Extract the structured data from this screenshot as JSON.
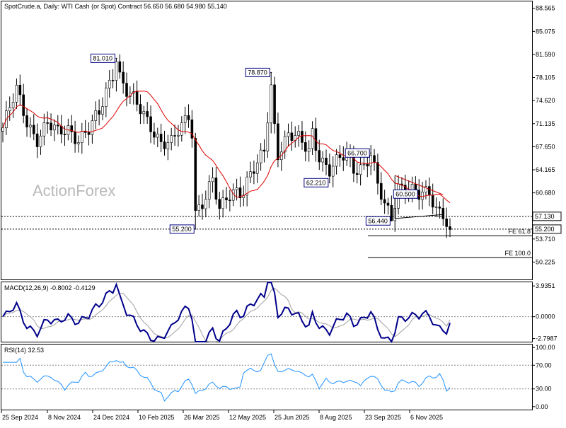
{
  "header": {
    "symbol": "SpotCrude.a, Daily:",
    "description": "WTI Cash (or Spot) Contract",
    "ohlc": "56.650 56.680 54.980 55.140"
  },
  "watermark": "ActionForex",
  "colors": {
    "candle": "#000000",
    "ma": "#e00000",
    "macd_line": "#00008b",
    "macd_signal": "#a0a0a0",
    "rsi": "#1e90ff",
    "trendline": "#000000",
    "upper_trend": "#cc0000"
  },
  "chart_data": [
    {
      "type": "candlestick",
      "panel": "price",
      "ylim": [
        47.6,
        89.6
      ],
      "y_ticks": [
        "88.565",
        "85.075",
        "81.590",
        "78.105",
        "74.620",
        "71.135",
        "67.650",
        "64.165",
        "60.680",
        "53.710",
        "50.225"
      ],
      "x_ticks": [
        "25 Sep 2024",
        "8 Nov 2024",
        "24 Dec 2024",
        "10 Feb 2025",
        "26 Mar 2025",
        "12 May 2025",
        "25 Jun 2025",
        "8 Aug 2025",
        "23 Sep 2025",
        "6 Nov 2025"
      ],
      "close_key_points": [
        [
          0,
          70.5
        ],
        [
          4,
          76.0
        ],
        [
          7,
          71.5
        ],
        [
          10,
          69.0
        ],
        [
          13,
          71.0
        ],
        [
          16,
          69.5
        ],
        [
          19,
          70.5
        ],
        [
          22,
          69.0
        ],
        [
          25,
          70.0
        ],
        [
          28,
          72.5
        ],
        [
          30,
          76.0
        ],
        [
          32,
          79.0
        ],
        [
          33,
          80.5
        ],
        [
          34,
          78.5
        ],
        [
          36,
          76.0
        ],
        [
          38,
          74.5
        ],
        [
          40,
          73.0
        ],
        [
          43,
          71.0
        ],
        [
          46,
          68.5
        ],
        [
          49,
          68.0
        ],
        [
          52,
          70.5
        ],
        [
          54,
          72.5
        ],
        [
          55,
          70.0
        ],
        [
          56,
          58.0
        ],
        [
          57,
          59.0
        ],
        [
          59,
          60.0
        ],
        [
          61,
          62.5
        ],
        [
          63,
          57.5
        ],
        [
          65,
          60.0
        ],
        [
          68,
          61.5
        ],
        [
          70,
          61.0
        ],
        [
          72,
          63.5
        ],
        [
          74,
          64.5
        ],
        [
          76,
          67.0
        ],
        [
          77,
          72.0
        ],
        [
          78,
          77.0
        ],
        [
          79,
          71.0
        ],
        [
          80,
          67.0
        ],
        [
          83,
          69.5
        ],
        [
          86,
          68.5
        ],
        [
          89,
          67.0
        ],
        [
          90,
          70.0
        ],
        [
          92,
          66.5
        ],
        [
          95,
          64.0
        ],
        [
          98,
          65.5
        ],
        [
          100,
          66.5
        ],
        [
          102,
          64.5
        ],
        [
          105,
          65.0
        ],
        [
          107,
          66.5
        ],
        [
          109,
          61.5
        ],
        [
          111,
          58.5
        ],
        [
          113,
          57.0
        ],
        [
          115,
          62.0
        ],
        [
          118,
          61.5
        ],
        [
          121,
          60.0
        ],
        [
          124,
          60.5
        ],
        [
          126,
          58.5
        ],
        [
          128,
          58.0
        ],
        [
          129,
          56.5
        ],
        [
          130,
          55.14
        ]
      ],
      "labels": [
        {
          "text": "81.010",
          "bar": 33,
          "price": 81.01,
          "side": "left"
        },
        {
          "text": "55.200",
          "bar": 56,
          "price": 55.2,
          "side": "left"
        },
        {
          "text": "78.870",
          "bar": 78,
          "price": 78.87,
          "side": "left"
        },
        {
          "text": "66.700",
          "bar": 107,
          "price": 66.7,
          "side": "left"
        },
        {
          "text": "62.210",
          "bar": 95,
          "price": 62.21,
          "side": "left"
        },
        {
          "text": "56.440",
          "bar": 113,
          "price": 56.44,
          "side": "left"
        },
        {
          "text": "60.500",
          "bar": 121,
          "price": 60.5,
          "side": "left"
        }
      ],
      "levels": [
        {
          "price": 57.13,
          "label": "57.130",
          "style": "dotted"
        },
        {
          "price": 55.2,
          "label": "55.200",
          "style": "dotted",
          "highlight": true
        }
      ],
      "projections": [
        {
          "price": 54.2,
          "label": "FE 61.8"
        },
        {
          "price": 50.9,
          "label": "FE 100.0"
        }
      ],
      "moving_average": "red"
    },
    {
      "type": "line",
      "panel": "macd",
      "title": "MACD(12,26,9) -0.8002 -0.4129",
      "ylim": [
        -3.2,
        4.4
      ],
      "y_ticks": [
        "3.9351",
        "0.0000",
        "-2.7987"
      ]
    },
    {
      "type": "line",
      "panel": "rsi",
      "title": "RSI(14) 32.53",
      "ylim": [
        -5,
        105
      ],
      "y_ticks": [
        "100.00",
        "70.00",
        "30.00",
        "0.00"
      ],
      "levels": [
        70,
        30
      ]
    }
  ]
}
